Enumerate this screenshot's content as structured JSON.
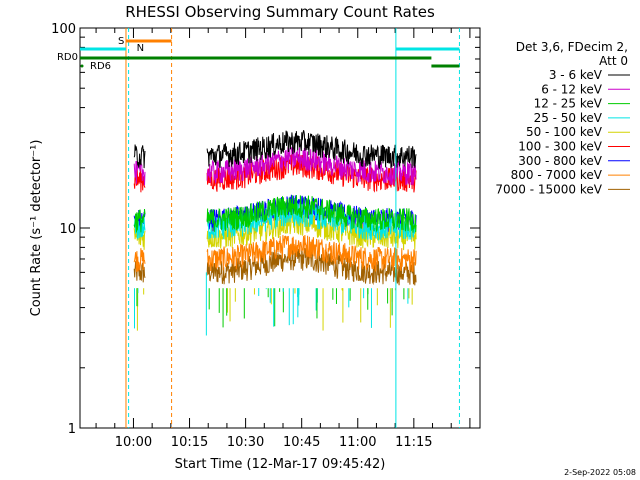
{
  "chart_data": {
    "type": "line",
    "title": "RHESSI Observing Summary Count Rates",
    "xlabel": "Start Time (12-Mar-17 09:45:42)",
    "ylabel": "Count Rate (s⁻¹ detector⁻¹)",
    "y_scale": "log",
    "ylim": [
      1,
      100
    ],
    "y_ticks": [
      {
        "value": 1,
        "label": "1"
      },
      {
        "value": 10,
        "label": "10"
      },
      {
        "value": 100,
        "label": "100"
      }
    ],
    "x_ticks": [
      "10:00",
      "10:15",
      "10:30",
      "10:45",
      "11:00",
      "11:15"
    ],
    "xlim_minutes_from_start": [
      0,
      107
    ],
    "legend_header": [
      "Det 3,6, FDecim 2,",
      "Att 0"
    ],
    "legend_position": "right",
    "series": [
      {
        "name": "3 - 6 keV",
        "color": "#000000",
        "level": 23
      },
      {
        "name": "6 - 12 keV",
        "color": "#cc00cc",
        "level": 19
      },
      {
        "name": "12 - 25 keV",
        "color": "#00cc00",
        "level": 11
      },
      {
        "name": "25 - 50 keV",
        "color": "#00e5e5",
        "level": 10
      },
      {
        "name": "50 - 100 keV",
        "color": "#d4d400",
        "level": 9
      },
      {
        "name": "100 - 300 keV",
        "color": "#ff0000",
        "level": 17.5
      },
      {
        "name": "300 - 800 keV",
        "color": "#0000ff",
        "level": 11
      },
      {
        "name": "800 - 7000 keV",
        "color": "#ff8000",
        "level": 7
      },
      {
        "name": "7000 - 15000 keV",
        "color": "#a06000",
        "level": 6
      }
    ],
    "data_intervals_minutes": [
      [
        14.5,
        17.5
      ],
      [
        34,
        90
      ]
    ],
    "annotations": {
      "S": {
        "label": "S",
        "color": "#ff8000"
      },
      "N": {
        "label": "N",
        "color": "#00e5e5"
      },
      "RD0": {
        "label": "RD0",
        "color": "#008000"
      },
      "RD6": {
        "label": "RD6",
        "color": "#008000"
      }
    },
    "footer_date": "2-Sep-2022 05:08"
  }
}
